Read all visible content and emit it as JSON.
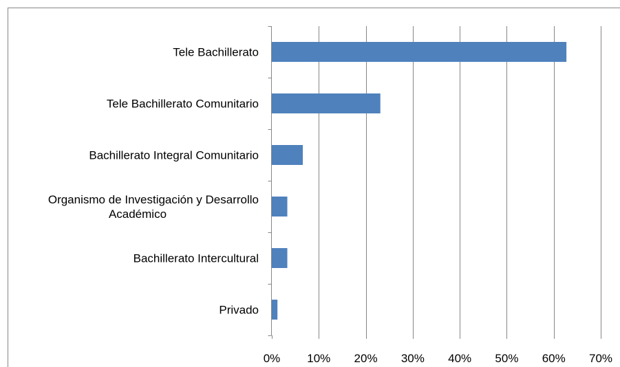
{
  "chart_data": {
    "type": "bar",
    "orientation": "horizontal",
    "title": "",
    "xlabel": "",
    "ylabel": "",
    "categories": [
      [
        "Tele Bachillerato"
      ],
      [
        "Tele Bachillerato Comunitario"
      ],
      [
        "Bachillerato Integral Comunitario"
      ],
      [
        "Organismo de Investigación y Desarrollo",
        "Académico"
      ],
      [
        "Bachillerato Intercultural"
      ],
      [
        "Privado"
      ]
    ],
    "values": [
      62.7,
      23.1,
      6.6,
      3.3,
      3.3,
      1.2
    ],
    "xlim": [
      0,
      70
    ],
    "x_ticks": [
      0,
      10,
      20,
      30,
      40,
      50,
      60,
      70
    ],
    "x_tick_labels": [
      "0%",
      "10%",
      "20%",
      "30%",
      "40%",
      "50%",
      "60%",
      "70%"
    ],
    "grid": "vertical",
    "legend": "none",
    "colors": {
      "bar": "#4F81BD",
      "grid": "#868686",
      "axis": "#868686",
      "border": "#868686"
    }
  }
}
